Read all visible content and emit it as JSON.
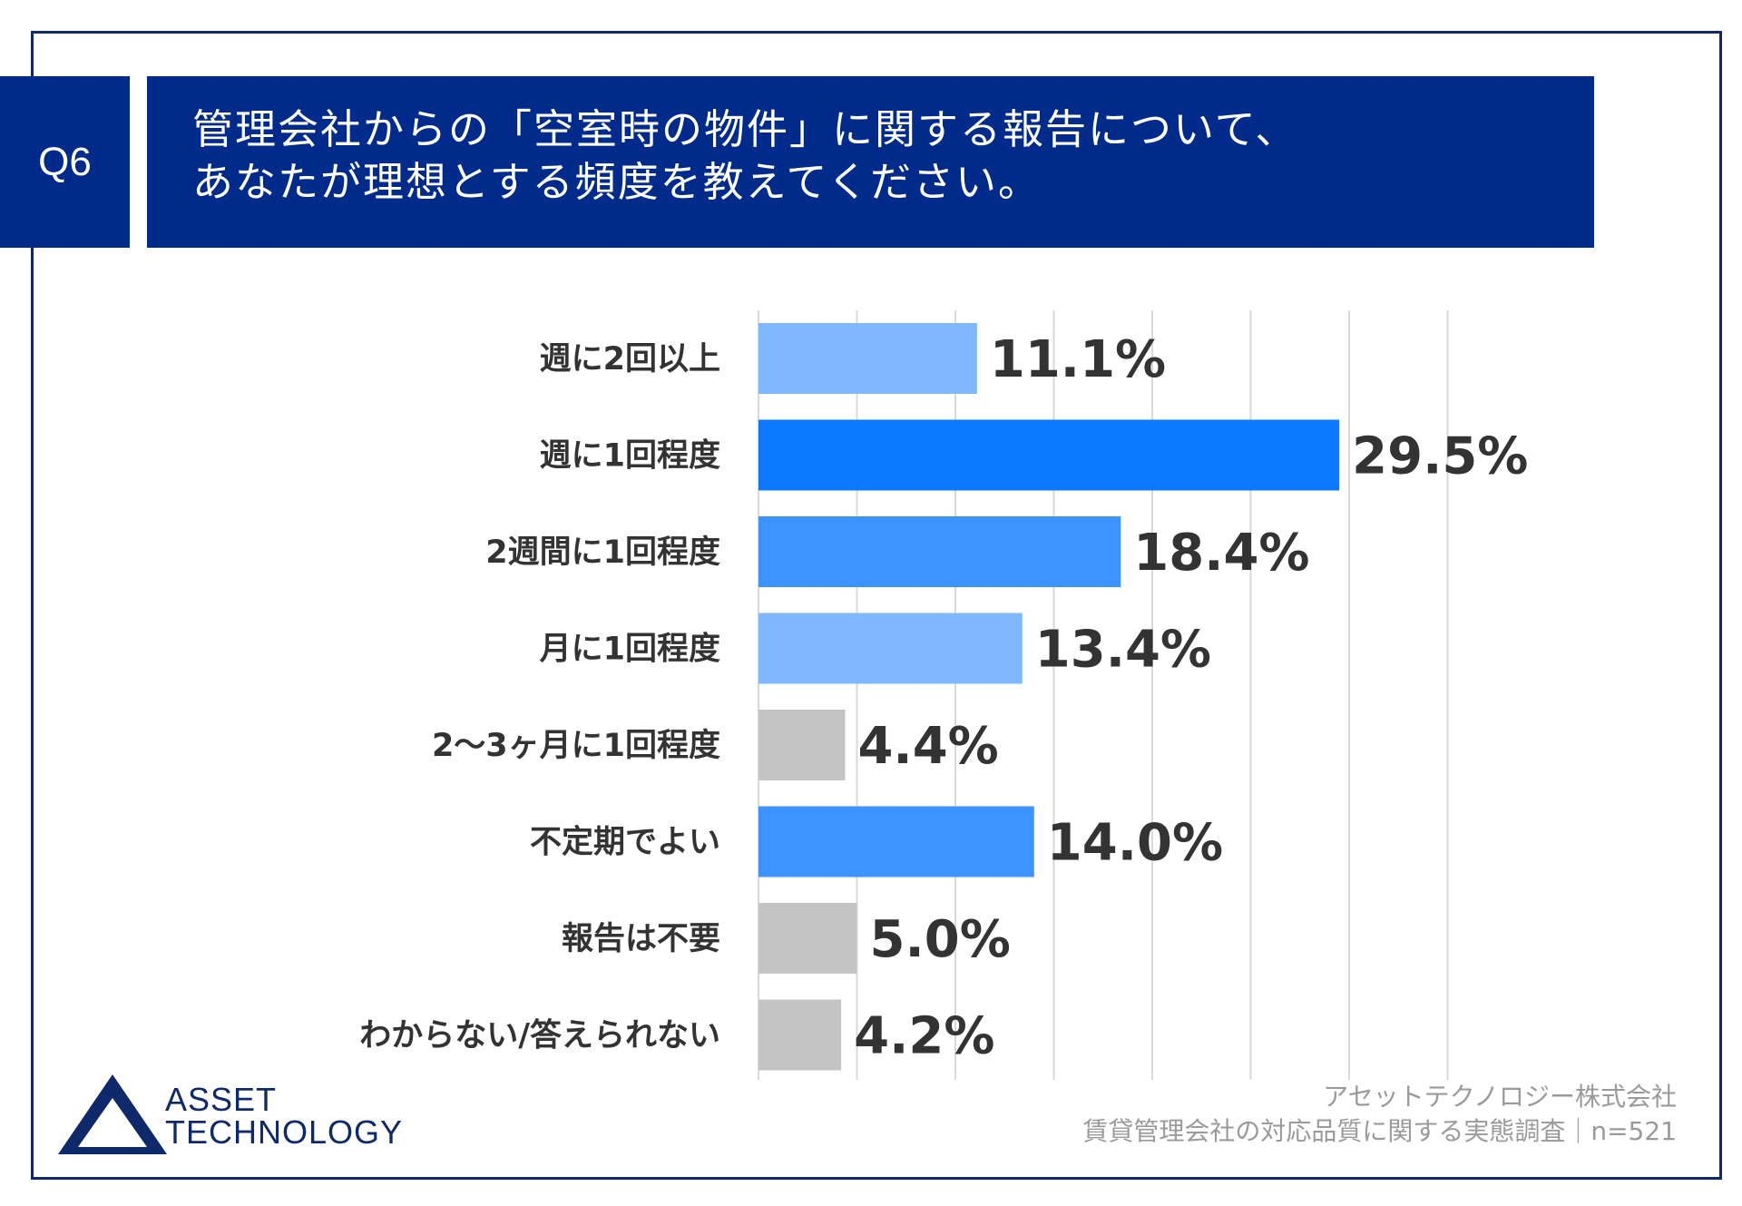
{
  "question_badge": "Q6",
  "title_lines": [
    "管理会社からの「空室時の物件」に関する報告について、",
    "あなたが理想とする頻度を教えてください。"
  ],
  "source": {
    "line1": "アセットテクノロジー株式会社",
    "line2": "賃貸管理会社の対応品質に関する実態調査｜n=521"
  },
  "logo": {
    "line1": "ASSET",
    "line2": "TECHNOLOGY"
  },
  "colors": {
    "navy": "#002b8a",
    "light_blue": "#7fb8ff",
    "bright_blue": "#0a78ff",
    "mid_blue": "#3d93ff",
    "grey": "#c4c4c4"
  },
  "chart_data": {
    "type": "bar",
    "orientation": "horizontal",
    "categories": [
      "週に2回以上",
      "週に1回程度",
      "2週間に1回程度",
      "月に1回程度",
      "2〜3ヶ月に1回程度",
      "不定期でよい",
      "報告は不要",
      "わからない/答えられない"
    ],
    "values": [
      11.1,
      29.5,
      18.4,
      13.4,
      4.4,
      14.0,
      5.0,
      4.2
    ],
    "value_labels": [
      "11.1%",
      "29.5%",
      "18.4%",
      "13.4%",
      "4.4%",
      "14.0%",
      "5.0%",
      "4.2%"
    ],
    "bar_colors": [
      "#7fb8ff",
      "#0a78ff",
      "#3d93ff",
      "#7fb8ff",
      "#c4c4c4",
      "#3d93ff",
      "#c4c4c4",
      "#c4c4c4"
    ],
    "xlim": [
      0,
      35
    ],
    "grid": true,
    "legend": "none"
  }
}
